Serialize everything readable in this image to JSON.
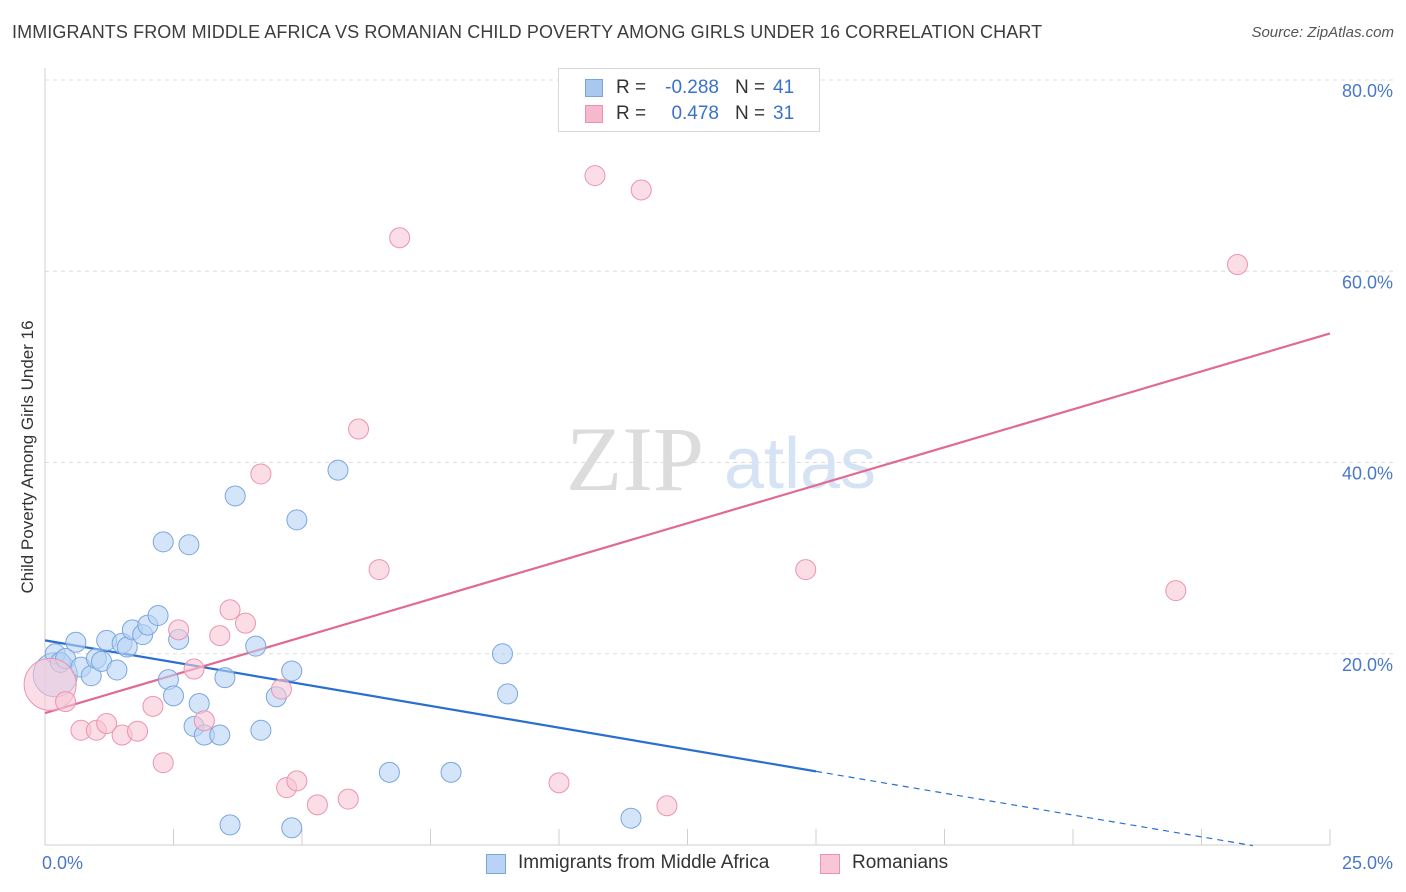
{
  "chart_data": {
    "type": "scatter",
    "title": "IMMIGRANTS FROM MIDDLE AFRICA VS ROMANIAN CHILD POVERTY AMONG GIRLS UNDER 16 CORRELATION CHART",
    "source": "Source: ZipAtlas.com",
    "watermark": {
      "zip": "ZIP",
      "atlas": "atlas"
    },
    "ylabel": "Child Poverty Among Girls Under 16",
    "xlim": [
      0,
      25
    ],
    "ylim": [
      0,
      80
    ],
    "x_tick_labels": [
      "0.0%",
      "25.0%"
    ],
    "y_ticks": [
      {
        "value": 20,
        "label": "20.0%"
      },
      {
        "value": 40,
        "label": "40.0%"
      },
      {
        "value": 60,
        "label": "60.0%"
      },
      {
        "value": 80,
        "label": "80.0%"
      }
    ],
    "grid": true,
    "stats": [
      {
        "r_label": "R =",
        "r": "-0.288",
        "n_label": "N =",
        "n": "41",
        "color": "#a8c8f0"
      },
      {
        "r_label": "R =",
        "r": "0.478",
        "n_label": "N =",
        "n": "31",
        "color": "#f5b8cc"
      }
    ],
    "series": [
      {
        "name": "Immigrants from Middle Africa",
        "fill": "#b8d3f5",
        "stroke": "#7aa6de",
        "line_color": "#2a6fd0",
        "trend": {
          "x0": 0,
          "y0": 21.4,
          "x1": 15,
          "y1": 7.7,
          "dash_to": 23.5
        },
        "points": [
          [
            0.2,
            17.8,
            22
          ],
          [
            0.2,
            20.0,
            10
          ],
          [
            0.3,
            19.1,
            10
          ],
          [
            0.4,
            19.5,
            10
          ],
          [
            0.6,
            21.2,
            10
          ],
          [
            0.7,
            18.6,
            10
          ],
          [
            0.9,
            17.7,
            10
          ],
          [
            1.0,
            19.5,
            10
          ],
          [
            1.1,
            19.2,
            10
          ],
          [
            1.2,
            21.4,
            10
          ],
          [
            1.4,
            18.3,
            10
          ],
          [
            1.5,
            21.1,
            10
          ],
          [
            1.6,
            20.7,
            10
          ],
          [
            1.7,
            22.5,
            10
          ],
          [
            1.9,
            22.0,
            10
          ],
          [
            2.0,
            23.0,
            10
          ],
          [
            2.2,
            24.0,
            10
          ],
          [
            2.3,
            31.7,
            10
          ],
          [
            2.4,
            17.3,
            10
          ],
          [
            2.5,
            15.6,
            10
          ],
          [
            2.6,
            21.5,
            10
          ],
          [
            2.8,
            31.4,
            10
          ],
          [
            2.9,
            12.4,
            10
          ],
          [
            3.0,
            14.8,
            10
          ],
          [
            3.1,
            11.5,
            10
          ],
          [
            3.4,
            11.5,
            10
          ],
          [
            3.5,
            17.5,
            10
          ],
          [
            3.6,
            2.1,
            10
          ],
          [
            3.7,
            36.5,
            10
          ],
          [
            4.1,
            20.8,
            10
          ],
          [
            4.2,
            12.0,
            10
          ],
          [
            4.5,
            15.5,
            10
          ],
          [
            4.8,
            1.8,
            10
          ],
          [
            4.8,
            18.2,
            10
          ],
          [
            4.9,
            34.0,
            10
          ],
          [
            5.7,
            39.2,
            10
          ],
          [
            6.7,
            7.6,
            10
          ],
          [
            7.9,
            7.6,
            10
          ],
          [
            8.9,
            20.0,
            10
          ],
          [
            9.0,
            15.8,
            10
          ],
          [
            11.4,
            2.8,
            10
          ]
        ]
      },
      {
        "name": "Romanians",
        "fill": "#f9c6d6",
        "stroke": "#ec93b1",
        "line_color": "#e06a93",
        "trend": {
          "x0": 0,
          "y0": 13.8,
          "x1": 25,
          "y1": 53.5
        },
        "points": [
          [
            0.1,
            16.8,
            26
          ],
          [
            0.4,
            15.0,
            10
          ],
          [
            0.7,
            12.0,
            10
          ],
          [
            1.0,
            12.0,
            10
          ],
          [
            1.2,
            12.7,
            10
          ],
          [
            1.5,
            11.5,
            10
          ],
          [
            1.8,
            11.9,
            10
          ],
          [
            2.1,
            14.5,
            10
          ],
          [
            2.3,
            8.6,
            10
          ],
          [
            2.6,
            22.5,
            10
          ],
          [
            2.9,
            18.4,
            10
          ],
          [
            3.1,
            13.0,
            10
          ],
          [
            3.4,
            21.9,
            10
          ],
          [
            3.6,
            24.6,
            10
          ],
          [
            3.9,
            23.2,
            10
          ],
          [
            4.2,
            38.8,
            10
          ],
          [
            4.6,
            16.3,
            10
          ],
          [
            4.7,
            6.0,
            10
          ],
          [
            4.9,
            6.7,
            10
          ],
          [
            5.3,
            4.2,
            10
          ],
          [
            5.9,
            4.8,
            10
          ],
          [
            6.1,
            43.5,
            10
          ],
          [
            6.5,
            28.8,
            10
          ],
          [
            6.9,
            63.5,
            10
          ],
          [
            10.0,
            6.5,
            10
          ],
          [
            10.7,
            70.0,
            10
          ],
          [
            11.6,
            68.5,
            10
          ],
          [
            12.1,
            4.1,
            10
          ],
          [
            14.8,
            28.8,
            10
          ],
          [
            22.0,
            26.6,
            10
          ],
          [
            23.2,
            60.7,
            10
          ]
        ]
      }
    ]
  }
}
